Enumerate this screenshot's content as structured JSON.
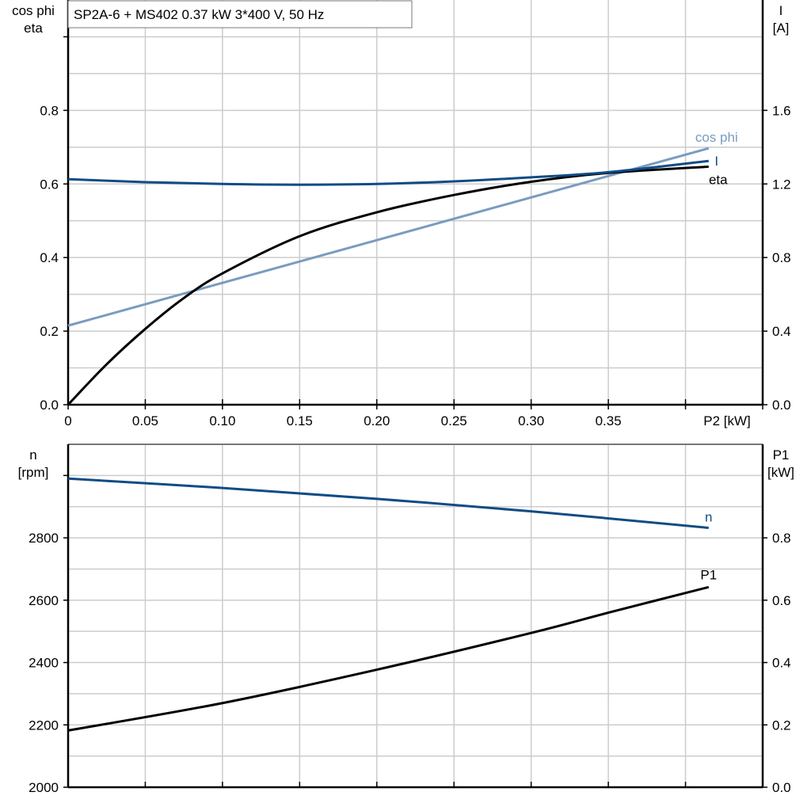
{
  "title": "SP2A-6 + MS402   0.37 kW   3*400 V, 50 Hz",
  "colors": {
    "cos_phi": "#7a9cbf",
    "I": "#0f4c85",
    "eta": "#000000",
    "n": "#0f4c85",
    "P1": "#000000",
    "grid": "#cccccc"
  },
  "chart_data": [
    {
      "type": "line",
      "xlabel": "P2 [kW]",
      "xlim": [
        0,
        0.45
      ],
      "x_ticks": [
        "0",
        "0.05",
        "0.10",
        "0.15",
        "0.20",
        "0.25",
        "0.30",
        "0.35"
      ],
      "x_tick_values": [
        0,
        0.05,
        0.1,
        0.15,
        0.2,
        0.25,
        0.3,
        0.35
      ],
      "ylabel_left": [
        "cos phi",
        "eta"
      ],
      "ylim_left": [
        0,
        1.1
      ],
      "y_ticks_left": [
        "0.0",
        "0.2",
        "0.4",
        "0.6",
        "0.8"
      ],
      "ylabel_right": [
        "I",
        "[A]"
      ],
      "ylim_right": [
        0,
        2.2
      ],
      "y_ticks_right": [
        "0.0",
        "0.4",
        "0.8",
        "1.2",
        "1.6"
      ],
      "grid": true,
      "series": [
        {
          "name": "cos phi",
          "axis": "left",
          "x": [
            0,
            0.415
          ],
          "y": [
            0.215,
            0.697
          ]
        },
        {
          "name": "eta",
          "axis": "left",
          "x": [
            0,
            0.025,
            0.05,
            0.075,
            0.1,
            0.15,
            0.2,
            0.25,
            0.3,
            0.35,
            0.415
          ],
          "y": [
            0,
            0.11,
            0.206,
            0.29,
            0.357,
            0.458,
            0.523,
            0.57,
            0.606,
            0.63,
            0.647
          ]
        },
        {
          "name": "I",
          "axis": "right",
          "x": [
            0,
            0.05,
            0.1,
            0.15,
            0.2,
            0.25,
            0.3,
            0.35,
            0.415
          ],
          "y": [
            1.226,
            1.21,
            1.2,
            1.196,
            1.2,
            1.214,
            1.236,
            1.264,
            1.325
          ]
        }
      ]
    },
    {
      "type": "line",
      "xlim": [
        0,
        0.45
      ],
      "ylabel_left": [
        "n",
        "[rpm]"
      ],
      "ylim_left": [
        2000,
        3100
      ],
      "y_ticks_left": [
        "2000",
        "2200",
        "2400",
        "2600",
        "2800"
      ],
      "ylabel_right": [
        "P1",
        "[kW]"
      ],
      "ylim_right": [
        0,
        1.1
      ],
      "y_ticks_right": [
        "0.0",
        "0.2",
        "0.4",
        "0.6",
        "0.8"
      ],
      "grid": true,
      "series": [
        {
          "name": "n",
          "axis": "left",
          "x": [
            0,
            0.1,
            0.2,
            0.3,
            0.415
          ],
          "y": [
            2990,
            2960,
            2925,
            2885,
            2832
          ]
        },
        {
          "name": "P1",
          "axis": "right",
          "x": [
            0,
            0.1,
            0.2,
            0.3,
            0.35,
            0.415
          ],
          "y": [
            0.182,
            0.27,
            0.377,
            0.495,
            0.56,
            0.642
          ]
        }
      ]
    }
  ]
}
